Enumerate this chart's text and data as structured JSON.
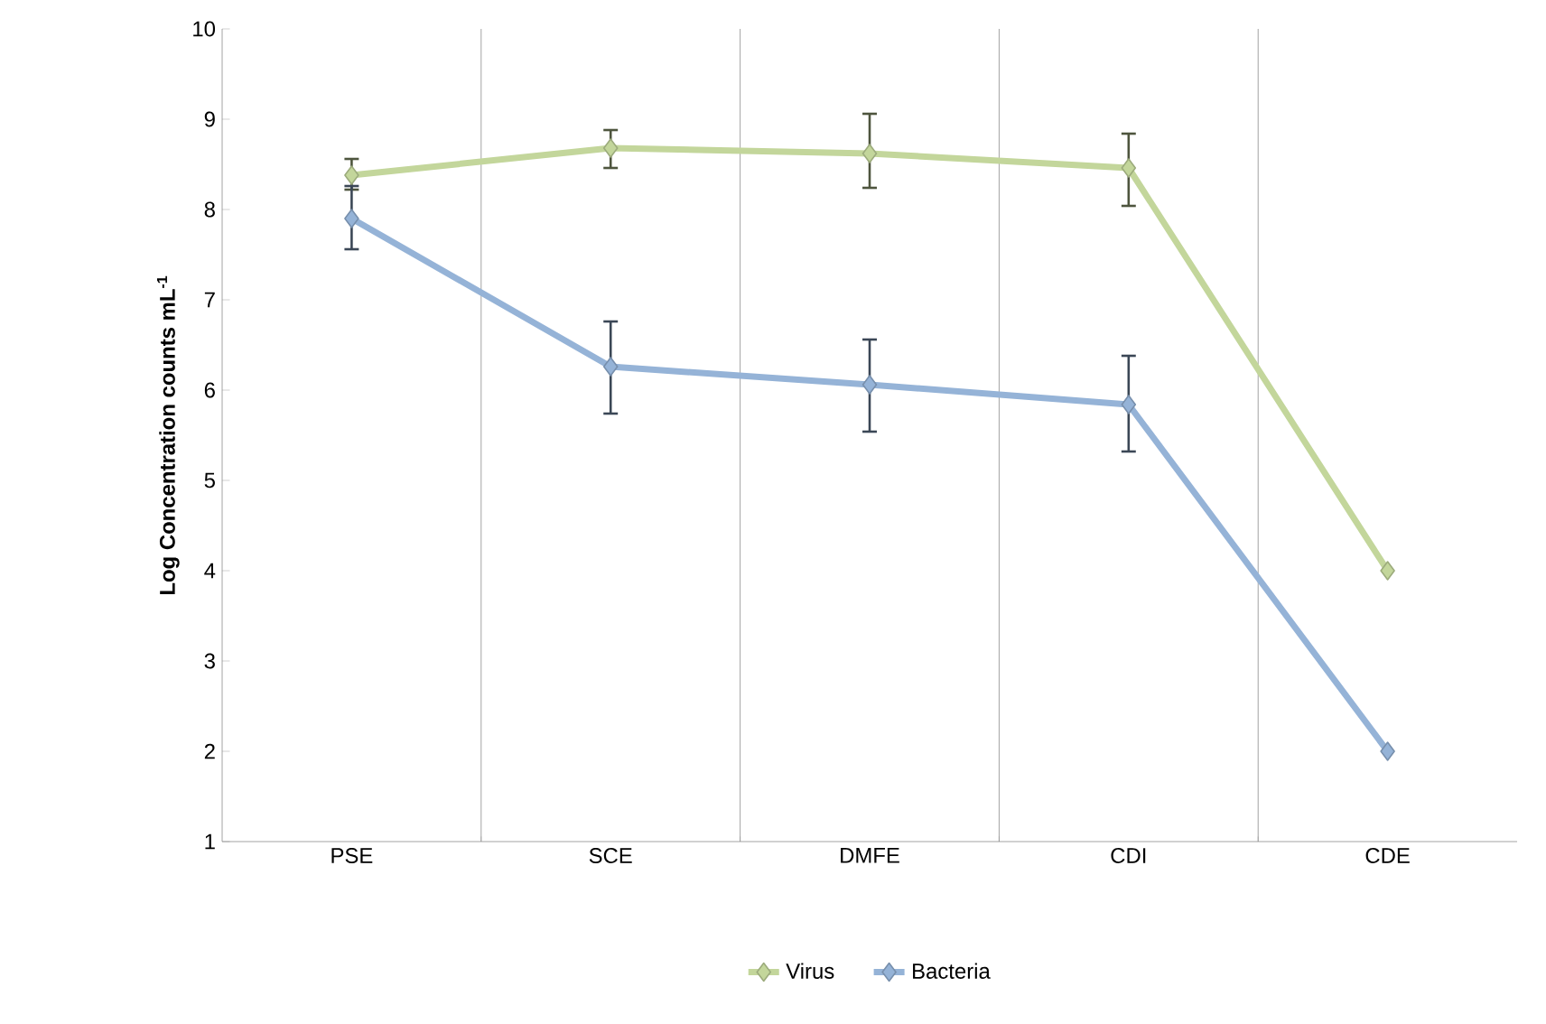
{
  "chart_data": {
    "type": "line",
    "ylabel": "Log Concentration counts mL$^{-1}$",
    "categories": [
      "PSE",
      "SCE",
      "DMFE",
      "CDI",
      "CDE"
    ],
    "series": [
      {
        "name": "Virus",
        "color": "#c3d69b",
        "values": [
          8.38,
          8.68,
          8.62,
          8.46,
          4.0
        ],
        "errors": [
          [
            8.22,
            8.56
          ],
          [
            8.46,
            8.88
          ],
          [
            8.24,
            9.06
          ],
          [
            8.04,
            8.84
          ],
          null
        ]
      },
      {
        "name": "Bacteria",
        "color": "#95b3d7",
        "values": [
          7.9,
          6.26,
          6.06,
          5.84,
          2.0
        ],
        "errors": [
          [
            7.56,
            8.26
          ],
          [
            5.74,
            6.76
          ],
          [
            5.54,
            6.56
          ],
          [
            5.32,
            6.38
          ],
          null
        ]
      }
    ],
    "ylim": [
      1,
      10
    ],
    "yticks": [
      1,
      2,
      3,
      4,
      5,
      6,
      7,
      8,
      9,
      10
    ],
    "grid": "x",
    "legend": "bottom",
    "marker": "diamond",
    "line_style": "solid"
  }
}
